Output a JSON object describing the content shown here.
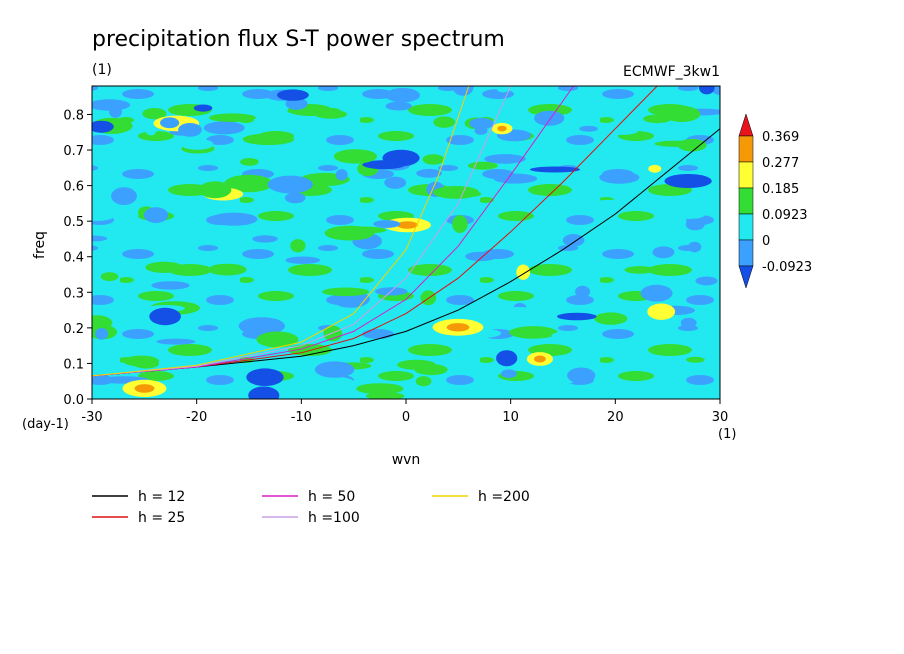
{
  "chart_data": {
    "type": "heatmap",
    "title": "precipitation flux S-T power spectrum",
    "subtitle_units": "(1)",
    "dataset_label": "ECMWF_3kw1",
    "xlabel": "wvn",
    "ylabel": "freq",
    "x_units": "(1)",
    "y_units": "(day-1)",
    "xlim": [
      -30,
      30
    ],
    "ylim": [
      0,
      0.88
    ],
    "x_ticks": [
      "-30",
      "-20",
      "-10",
      "0",
      "10",
      "20",
      "30"
    ],
    "x_tick_values": [
      -30,
      -20,
      -10,
      0,
      10,
      20,
      30
    ],
    "y_ticks": [
      "0.0",
      "0.1",
      "0.2",
      "0.3",
      "0.4",
      "0.5",
      "0.6",
      "0.7",
      "0.8"
    ],
    "y_tick_values": [
      0,
      0.1,
      0.2,
      0.3,
      0.4,
      0.5,
      0.6,
      0.7,
      0.8
    ],
    "colorbar": {
      "levels": [
        "0.369",
        "0.277",
        "0.185",
        "0.0923",
        "0",
        "-0.0923"
      ],
      "colors": [
        "#e8141c",
        "#f59a06",
        "#ffff33",
        "#33dd33",
        "#22e8f0",
        "#3ca0ff",
        "#1450e6"
      ]
    },
    "background_level_color": "#22e8f0",
    "series": [
      {
        "name": "h = 12",
        "color": "#000000",
        "x": [
          -30,
          -20,
          -10,
          -5,
          0,
          5,
          10,
          15,
          20,
          25,
          30
        ],
        "y": [
          0.065,
          0.09,
          0.12,
          0.15,
          0.19,
          0.25,
          0.33,
          0.42,
          0.52,
          0.64,
          0.76
        ]
      },
      {
        "name": "h = 25",
        "color": "#e01010",
        "x": [
          -30,
          -20,
          -10,
          -5,
          0,
          5,
          10,
          15,
          20,
          24
        ],
        "y": [
          0.065,
          0.09,
          0.13,
          0.17,
          0.24,
          0.34,
          0.47,
          0.61,
          0.76,
          0.88
        ]
      },
      {
        "name": "h = 50",
        "color": "#d81ec8",
        "x": [
          -30,
          -20,
          -10,
          -5,
          0,
          5,
          10,
          16
        ],
        "y": [
          0.065,
          0.09,
          0.14,
          0.19,
          0.28,
          0.43,
          0.63,
          0.88
        ]
      },
      {
        "name": "h =100",
        "color": "#c9a0e6",
        "x": [
          -30,
          -20,
          -10,
          -5,
          0,
          5,
          10
        ],
        "y": [
          0.065,
          0.092,
          0.15,
          0.21,
          0.34,
          0.55,
          0.88
        ]
      },
      {
        "name": "h =200",
        "color": "#f2d400",
        "x": [
          -30,
          -20,
          -10,
          -5,
          0,
          3,
          6
        ],
        "y": [
          0.065,
          0.095,
          0.16,
          0.24,
          0.42,
          0.62,
          0.88
        ]
      }
    ]
  }
}
